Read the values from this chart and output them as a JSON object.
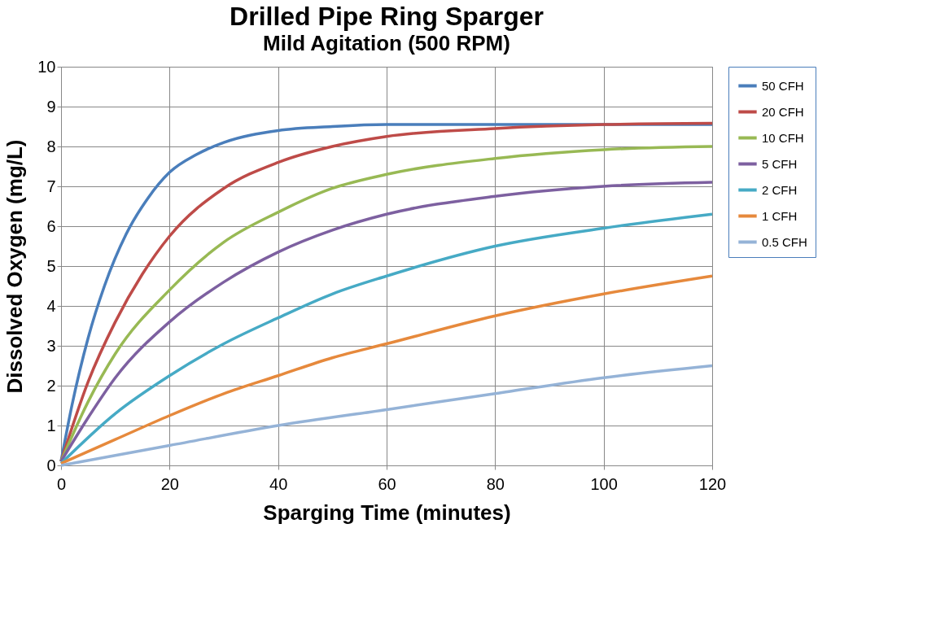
{
  "chart_data": {
    "type": "line",
    "title": "Drilled Pipe Ring Sparger",
    "subtitle": "Mild Agitation  (500 RPM)",
    "xlabel": "Sparging  Time  (minutes)",
    "ylabel": "Dissolved  Oxygen  (mg/L)",
    "xlim": [
      0,
      120
    ],
    "xticks": [
      0,
      20,
      40,
      60,
      80,
      100,
      120
    ],
    "ylim": [
      0,
      10
    ],
    "yticks": [
      0,
      1,
      2,
      3,
      4,
      5,
      6,
      7,
      8,
      9,
      10
    ],
    "grid": true,
    "legend": "right",
    "line_style": "solid",
    "series": [
      {
        "name": "50 CFH",
        "color": "#4a7ebb",
        "x": [
          0,
          2,
          5,
          8,
          12,
          16,
          20,
          25,
          30,
          40,
          50,
          60,
          80,
          100,
          120
        ],
        "values": [
          0.1,
          1.5,
          3.2,
          4.5,
          5.8,
          6.7,
          7.35,
          7.8,
          8.1,
          8.4,
          8.5,
          8.55,
          8.55,
          8.55,
          8.55
        ]
      },
      {
        "name": "20 CFH",
        "color": "#be4b48",
        "x": [
          0,
          5,
          10,
          15,
          20,
          30,
          40,
          50,
          60,
          80,
          100,
          120
        ],
        "values": [
          0.1,
          2.1,
          3.6,
          4.8,
          5.75,
          6.95,
          7.6,
          8.0,
          8.25,
          8.45,
          8.55,
          8.58
        ]
      },
      {
        "name": "10 CFH",
        "color": "#98b954",
        "x": [
          0,
          5,
          10,
          20,
          30,
          40,
          50,
          60,
          80,
          100,
          120
        ],
        "values": [
          0.1,
          1.6,
          2.8,
          4.4,
          5.6,
          6.35,
          6.95,
          7.3,
          7.7,
          7.92,
          8.0
        ]
      },
      {
        "name": "5 CFH",
        "color": "#7d60a0",
        "x": [
          0,
          5,
          10,
          20,
          30,
          40,
          50,
          60,
          80,
          100,
          120
        ],
        "values": [
          0.1,
          1.2,
          2.2,
          3.6,
          4.6,
          5.35,
          5.9,
          6.3,
          6.75,
          7.0,
          7.1
        ]
      },
      {
        "name": "2 CFH",
        "color": "#46aac5",
        "x": [
          0,
          10,
          20,
          30,
          40,
          50,
          60,
          80,
          100,
          120
        ],
        "values": [
          0.05,
          1.3,
          2.25,
          3.05,
          3.7,
          4.3,
          4.75,
          5.5,
          5.95,
          6.3
        ]
      },
      {
        "name": "1 CFH",
        "color": "#e6893c",
        "x": [
          0,
          10,
          20,
          30,
          40,
          50,
          60,
          80,
          100,
          120
        ],
        "values": [
          0.05,
          0.65,
          1.25,
          1.8,
          2.25,
          2.7,
          3.05,
          3.75,
          4.3,
          4.75
        ]
      },
      {
        "name": "0.5 CFH",
        "color": "#95b3d7",
        "x": [
          0,
          20,
          40,
          60,
          80,
          100,
          120
        ],
        "values": [
          0,
          0.5,
          1.0,
          1.4,
          1.8,
          2.2,
          2.5
        ]
      }
    ]
  }
}
